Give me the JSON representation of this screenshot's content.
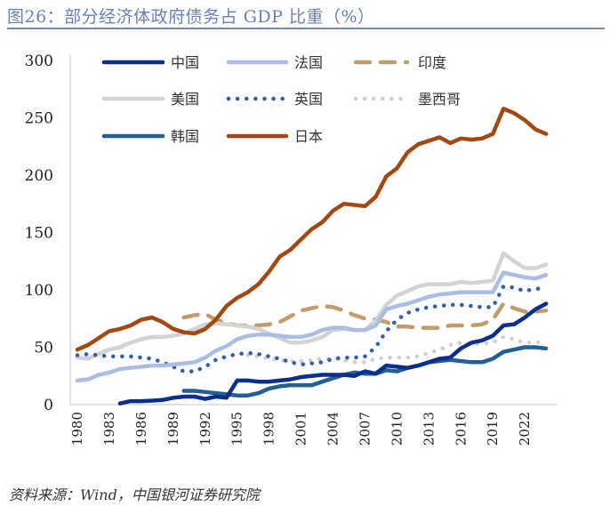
{
  "title": "图26：部分经济体政府债务占 GDP 比重（%）",
  "source": "资料来源：Wind，中国银河证券研究院",
  "chart_data": {
    "type": "line",
    "title": "部分经济体政府债务占 GDP 比重（%）",
    "xlabel": "",
    "ylabel": "",
    "xlim": [
      1980,
      2024
    ],
    "ylim": [
      0,
      300
    ],
    "yticks": [
      0,
      50,
      100,
      150,
      200,
      250,
      300
    ],
    "xticks": [
      1980,
      1983,
      1986,
      1989,
      1992,
      1995,
      1998,
      2001,
      2004,
      2007,
      2010,
      2013,
      2016,
      2019,
      2022
    ],
    "grid": false,
    "legend": "top",
    "series": [
      {
        "name": "中国",
        "color": "#0b2d8c",
        "style": "solid",
        "start": 1984,
        "values": [
          1,
          3,
          3,
          3.5,
          4,
          6,
          7,
          7,
          5,
          7,
          6,
          21,
          21,
          20,
          20,
          21,
          22,
          24,
          25,
          26,
          26,
          26,
          25,
          29,
          27,
          34,
          33,
          32,
          34,
          37,
          40,
          41,
          49,
          54,
          56,
          60,
          69,
          70,
          76,
          83,
          88
        ]
      },
      {
        "name": "法国",
        "color": "#a9bde6",
        "style": "solid",
        "start": 1980,
        "values": [
          21,
          22,
          26,
          28,
          31,
          32,
          33,
          34,
          34,
          35,
          36,
          37,
          41,
          47,
          51,
          57,
          60,
          61,
          61,
          60,
          59,
          59,
          61,
          65,
          67,
          67,
          65,
          65,
          69,
          83,
          86,
          88,
          91,
          94,
          96,
          97,
          98,
          98,
          98,
          98,
          115,
          113,
          111,
          110,
          113
        ]
      },
      {
        "name": "印度",
        "color": "#c39c6c",
        "style": "dashed",
        "start": 1990,
        "values": [
          76,
          78,
          79,
          74,
          71,
          69,
          69,
          69,
          70,
          72,
          77,
          82,
          84,
          86,
          85,
          82,
          78,
          75,
          74,
          72,
          68,
          68,
          67,
          67,
          67,
          69,
          69,
          69,
          70,
          74,
          88,
          84,
          81,
          81,
          82
        ]
      },
      {
        "name": "美国",
        "color": "#d3d3d3",
        "style": "solid",
        "start": 1980,
        "values": [
          41,
          40,
          44,
          48,
          50,
          54,
          57,
          59,
          59,
          60,
          62,
          66,
          70,
          71,
          70,
          69,
          68,
          66,
          62,
          58,
          54,
          54,
          56,
          59,
          65,
          66,
          65,
          65,
          73,
          87,
          95,
          99,
          103,
          105,
          105,
          105,
          107,
          106,
          107,
          108,
          132,
          125,
          119,
          119,
          122
        ]
      },
      {
        "name": "英国",
        "color": "#2f5db8",
        "style": "dotted",
        "start": 1980,
        "values": [
          43,
          44,
          43,
          42,
          42,
          42,
          41,
          40,
          37,
          33,
          29,
          29,
          33,
          39,
          42,
          44,
          45,
          44,
          42,
          40,
          37,
          35,
          36,
          37,
          40,
          41,
          41,
          42,
          50,
          64,
          74,
          80,
          83,
          85,
          86,
          87,
          87,
          86,
          85,
          85,
          103,
          102,
          99,
          101,
          101
        ]
      },
      {
        "name": "墨西哥",
        "color": "#d0d0d0",
        "style": "dotted",
        "start": 1996,
        "values": [
          43,
          42,
          40,
          39,
          38,
          38,
          39,
          40,
          40,
          39,
          37,
          37,
          40,
          41,
          41,
          41,
          42,
          45,
          48,
          52,
          54,
          53,
          53,
          54,
          59,
          57,
          54,
          54,
          55
        ]
      },
      {
        "name": "韩国",
        "color": "#215f94",
        "style": "solid",
        "start": 1990,
        "values": [
          12,
          12,
          11,
          10,
          9,
          8,
          8,
          10,
          14,
          16,
          17,
          17,
          17,
          20,
          23,
          26,
          28,
          27,
          27,
          30,
          29,
          32,
          34,
          37,
          38,
          39,
          38,
          37,
          37,
          40,
          46,
          48,
          50,
          50,
          49
        ]
      },
      {
        "name": "日本",
        "color": "#a3490f",
        "style": "solid",
        "start": 1980,
        "values": [
          48,
          52,
          58,
          64,
          66,
          69,
          74,
          76,
          72,
          66,
          63,
          62,
          66,
          74,
          86,
          93,
          98,
          105,
          116,
          129,
          135,
          144,
          153,
          159,
          169,
          175,
          174,
          173,
          181,
          199,
          206,
          220,
          227,
          230,
          233,
          228,
          232,
          231,
          232,
          236,
          258,
          254,
          248,
          240,
          236
        ]
      }
    ]
  }
}
